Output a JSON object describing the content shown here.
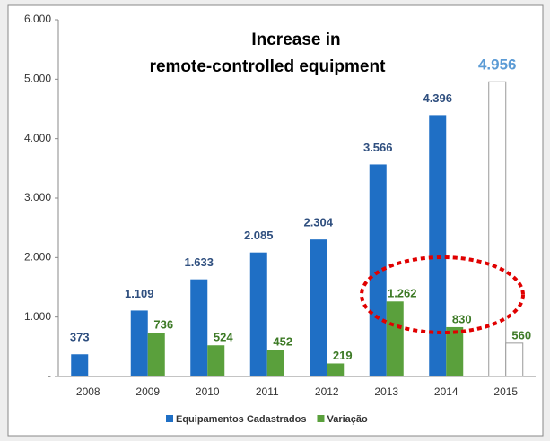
{
  "chart_data": {
    "type": "bar",
    "title": [
      "Increase in",
      "remote-controlled equipment"
    ],
    "categories": [
      "2008",
      "2009",
      "2010",
      "2011",
      "2012",
      "2013",
      "2014",
      "2015"
    ],
    "series": [
      {
        "name": "Equipamentos Cadastrados",
        "color": "#1f6fc5",
        "point_colors": [
          "#1f6fc5",
          "#1f6fc5",
          "#1f6fc5",
          "#1f6fc5",
          "#1f6fc5",
          "#1f6fc5",
          "#1f6fc5",
          "#ffffff"
        ],
        "values": [
          373,
          1109,
          1633,
          2085,
          2304,
          3566,
          4396,
          4956
        ],
        "value_labels": [
          "373",
          "1.109",
          "1.633",
          "2.085",
          "2.304",
          "3.566",
          "4.396",
          "4.956"
        ]
      },
      {
        "name": "Variação",
        "color": "#5aa03c",
        "point_colors": [
          "#5aa03c",
          "#5aa03c",
          "#5aa03c",
          "#5aa03c",
          "#5aa03c",
          "#5aa03c",
          "#5aa03c",
          "#ffffff"
        ],
        "values": [
          null,
          736,
          524,
          452,
          219,
          1262,
          830,
          560
        ],
        "value_labels": [
          null,
          "736",
          "524",
          "452",
          "219",
          "1.262",
          "830",
          "560"
        ]
      }
    ],
    "ylim": [
      0,
      6000
    ],
    "yticks": [
      {
        "value": 0,
        "label": "-"
      },
      {
        "value": 1000,
        "label": "1.000"
      },
      {
        "value": 2000,
        "label": "2.000"
      },
      {
        "value": 3000,
        "label": "3.000"
      },
      {
        "value": 4000,
        "label": "4.000"
      },
      {
        "value": 5000,
        "label": "5.000"
      },
      {
        "value": 6000,
        "label": "6.000"
      }
    ],
    "legend": "bottom"
  }
}
